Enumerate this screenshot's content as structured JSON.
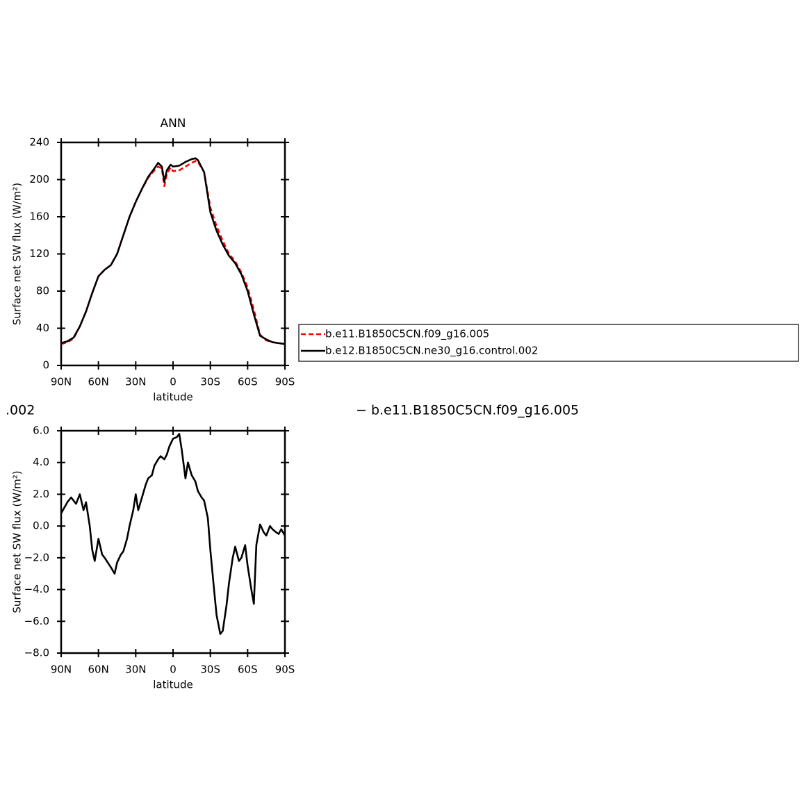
{
  "chart_data": [
    {
      "type": "line",
      "title": "ANN",
      "x_label": "latitude",
      "y_label": "Surface net SW flux (W/m²)",
      "x": [
        90,
        85,
        80,
        75,
        70,
        65,
        60,
        55,
        50,
        45,
        40,
        35,
        30,
        25,
        20,
        15,
        12,
        9,
        7,
        5,
        2,
        0,
        -5,
        -10,
        -15,
        -18,
        -20,
        -25,
        -30,
        -35,
        -40,
        -45,
        -50,
        -55,
        -60,
        -65,
        -70,
        -75,
        -80,
        -85,
        -90
      ],
      "series": [
        {
          "name": "b.e11.B1850C5CN.f09_g16.005",
          "color": "#ff0000",
          "line_style": "dashed",
          "values": [
            23,
            25,
            29,
            42,
            58,
            78,
            96,
            103,
            108,
            120,
            140,
            160,
            176,
            190,
            202,
            210,
            214,
            212,
            193,
            206,
            213,
            209,
            210,
            214,
            218,
            220,
            219,
            208,
            170,
            150,
            134,
            120,
            112,
            100,
            84,
            60,
            33,
            27,
            25,
            24,
            23
          ]
        },
        {
          "name": "b.e12.B1850C5CN.ne30_g16.control.002",
          "color": "#000000",
          "line_style": "solid",
          "values": [
            24,
            26,
            30,
            42,
            58,
            78,
            96,
            103,
            108,
            120,
            140,
            160,
            176,
            190,
            203,
            212,
            218,
            214,
            198,
            210,
            216,
            214,
            215,
            219,
            222,
            223,
            221,
            208,
            165,
            145,
            130,
            118,
            110,
            98,
            80,
            55,
            32,
            28,
            25,
            24,
            23
          ]
        }
      ],
      "xlim": [
        90,
        -90
      ],
      "xticks": [
        {
          "value": 90,
          "label": "90N"
        },
        {
          "value": 60,
          "label": "60N"
        },
        {
          "value": 30,
          "label": "30N"
        },
        0,
        {
          "value": -30,
          "label": "30S"
        },
        {
          "value": -60,
          "label": "60S"
        },
        {
          "value": -90,
          "label": "90S"
        }
      ],
      "ylim": [
        0,
        240
      ],
      "yticks": [
        0,
        40,
        80,
        120,
        160,
        200,
        240
      ],
      "legend": "right"
    },
    {
      "type": "line",
      "subtitle_left": ".002",
      "subtitle_right": "− b.e11.B1850C5CN.f09_g16.005",
      "x_label": "latitude",
      "y_label": "Surface net SW flux (W/m²)",
      "x": [
        90,
        85,
        82,
        78,
        75,
        72,
        70,
        67,
        65,
        63,
        60,
        57,
        55,
        50,
        47,
        45,
        42,
        40,
        37,
        35,
        32,
        30,
        28,
        25,
        22,
        20,
        17,
        15,
        12,
        10,
        7,
        5,
        3,
        0,
        -3,
        -5,
        -7,
        -10,
        -12,
        -15,
        -18,
        -20,
        -23,
        -25,
        -28,
        -30,
        -33,
        -35,
        -38,
        -40,
        -43,
        -45,
        -48,
        -50,
        -53,
        -55,
        -58,
        -60,
        -63,
        -65,
        -67,
        -70,
        -73,
        -75,
        -78,
        -80,
        -83,
        -85,
        -87,
        -90
      ],
      "values": [
        0.8,
        1.5,
        1.8,
        1.4,
        2.0,
        1.0,
        1.5,
        0,
        -1.5,
        -2.2,
        -0.8,
        -1.8,
        -2.0,
        -2.6,
        -3.0,
        -2.3,
        -1.8,
        -1.6,
        -0.8,
        0,
        1.0,
        2.0,
        1.0,
        1.8,
        2.6,
        3.0,
        3.2,
        3.8,
        4.2,
        4.4,
        4.2,
        4.5,
        5.0,
        5.5,
        5.6,
        5.8,
        4.8,
        3.0,
        4.0,
        3.2,
        2.8,
        2.2,
        1.8,
        1.6,
        0.5,
        -1.5,
        -4.0,
        -5.6,
        -6.8,
        -6.6,
        -5.0,
        -3.6,
        -2.0,
        -1.3,
        -2.2,
        -2.0,
        -1.2,
        -2.5,
        -4.0,
        -4.9,
        -1.2,
        0.1,
        -0.4,
        -0.6,
        0,
        -0.2,
        -0.4,
        -0.5,
        -0.2,
        -0.6
      ],
      "color": "#000000",
      "line_style": "solid",
      "xlim": [
        90,
        -90
      ],
      "xticks": [
        {
          "value": 90,
          "label": "90N"
        },
        {
          "value": 60,
          "label": "60N"
        },
        {
          "value": 30,
          "label": "30N"
        },
        0,
        {
          "value": -30,
          "label": "30S"
        },
        {
          "value": -60,
          "label": "60S"
        },
        {
          "value": -90,
          "label": "90S"
        }
      ],
      "ylim": [
        -8,
        6
      ],
      "yticks": [
        {
          "value": -8,
          "label": "−8.0"
        },
        {
          "value": -6,
          "label": "−6.0"
        },
        {
          "value": -4,
          "label": "−4.0"
        },
        {
          "value": -2,
          "label": "−2.0"
        },
        {
          "value": 0,
          "label": "0.0"
        },
        {
          "value": 2,
          "label": "2.0"
        },
        {
          "value": 4,
          "label": "4.0"
        },
        {
          "value": 6,
          "label": "6.0"
        }
      ]
    }
  ]
}
